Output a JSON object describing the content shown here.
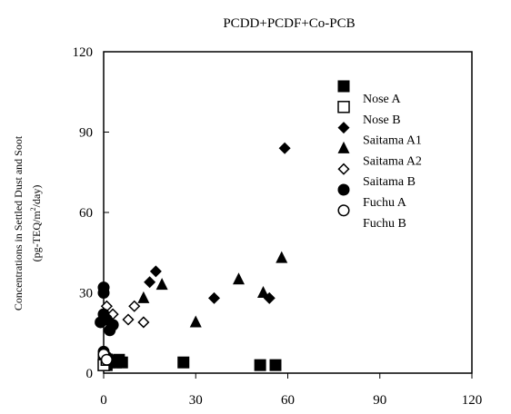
{
  "chart_data": {
    "type": "scatter",
    "title": "PCDD+PCDF+Co-PCB",
    "ylabel_line1": "Concentrations in Settled Dust and Soot",
    "ylabel_line2_pre": "(pg-TEQ/m",
    "ylabel_line2_sup": "2",
    "ylabel_line2_post": "/day)",
    "xlim": [
      0,
      120
    ],
    "ylim": [
      0,
      120
    ],
    "x_ticks": [
      "0",
      "30",
      "60",
      "90",
      "120"
    ],
    "y_ticks": [
      "0",
      "30",
      "60",
      "90",
      "120"
    ],
    "legend_position": "upper-right",
    "series": [
      {
        "name": "Nose A",
        "marker": "square-filled",
        "points": [
          [
            0,
            5
          ],
          [
            1,
            3
          ],
          [
            2,
            4
          ],
          [
            4,
            4
          ],
          [
            5,
            5
          ],
          [
            6,
            4
          ],
          [
            26,
            4
          ],
          [
            51,
            3
          ],
          [
            56,
            3
          ]
        ]
      },
      {
        "name": "Nose B",
        "marker": "square-open",
        "points": [
          [
            0,
            3
          ],
          [
            1,
            5
          ]
        ]
      },
      {
        "name": "Saitama A1",
        "marker": "diamond-filled",
        "points": [
          [
            15,
            34
          ],
          [
            17,
            38
          ],
          [
            36,
            28
          ],
          [
            54,
            28
          ],
          [
            59,
            84
          ]
        ]
      },
      {
        "name": "Saitama A2",
        "marker": "triangle-filled",
        "points": [
          [
            13,
            28
          ],
          [
            19,
            33
          ],
          [
            30,
            19
          ],
          [
            44,
            35
          ],
          [
            52,
            30
          ],
          [
            58,
            43
          ]
        ]
      },
      {
        "name": "Saitama B",
        "marker": "diamond-open",
        "points": [
          [
            0,
            22
          ],
          [
            1,
            25
          ],
          [
            3,
            22
          ],
          [
            8,
            20
          ],
          [
            10,
            25
          ],
          [
            13,
            19
          ]
        ]
      },
      {
        "name": "Fuchu A",
        "marker": "circle-filled",
        "points": [
          [
            0,
            32
          ],
          [
            0,
            30
          ],
          [
            0,
            22
          ],
          [
            -1,
            19
          ],
          [
            1,
            20
          ],
          [
            2,
            16
          ],
          [
            3,
            18
          ],
          [
            0,
            8
          ],
          [
            1,
            6
          ],
          [
            2,
            5
          ]
        ]
      },
      {
        "name": "Fuchu B",
        "marker": "circle-open",
        "points": [
          [
            0,
            7
          ],
          [
            1,
            5
          ]
        ]
      }
    ]
  }
}
